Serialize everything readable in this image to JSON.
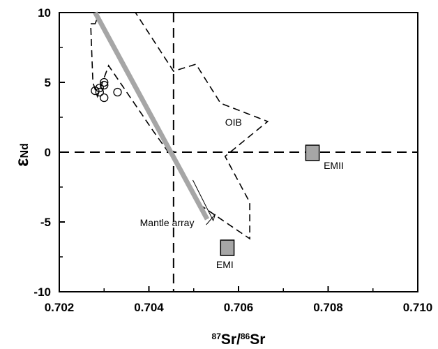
{
  "chart_data": {
    "type": "scatter",
    "xlabel": {
      "sup1": "87",
      "base1": "Sr/",
      "sup2": "86",
      "base2": "Sr"
    },
    "ylabel": {
      "epsilon": "ε",
      "sub": "Nd"
    },
    "xlim": [
      0.702,
      0.71
    ],
    "ylim": [
      -10,
      10
    ],
    "xticks": [
      "0.702",
      "0.704",
      "0.706",
      "0.708",
      "0.710"
    ],
    "yticks": [
      "10",
      "5",
      "0",
      "-5",
      "-10"
    ],
    "grid": false,
    "reference_lines": [
      {
        "orientation": "vertical",
        "x": 0.70455,
        "style": "dashed"
      },
      {
        "orientation": "horizontal",
        "y": 0,
        "style": "dashed"
      }
    ],
    "samples": [
      {
        "x": 0.7028,
        "y": 4.4
      },
      {
        "x": 0.7029,
        "y": 4.6
      },
      {
        "x": 0.703,
        "y": 4.8
      },
      {
        "x": 0.703,
        "y": 5.0
      },
      {
        "x": 0.7029,
        "y": 4.3
      },
      {
        "x": 0.703,
        "y": 3.9
      },
      {
        "x": 0.7033,
        "y": 4.3
      }
    ],
    "mantle_array": {
      "label": "Mantle array",
      "start": [
        0.7028,
        10.0
      ],
      "end": [
        0.7053,
        -4.8
      ],
      "label_position": [
        0.7038,
        -5.3
      ]
    },
    "oib_field": {
      "label": "OIB",
      "label_position": [
        0.7057,
        1.9
      ],
      "polygon": [
        [
          0.7028,
          9.2
        ],
        [
          0.7029,
          10.0
        ],
        [
          0.7037,
          10.0
        ],
        [
          0.70455,
          5.8
        ],
        [
          0.70505,
          6.3
        ],
        [
          0.7056,
          3.5
        ],
        [
          0.70665,
          2.2
        ],
        [
          0.7057,
          -0.3
        ],
        [
          0.70625,
          -3.6
        ],
        [
          0.70625,
          -6.2
        ],
        [
          0.70515,
          -3.8
        ],
        [
          0.7047,
          -1.2
        ],
        [
          0.7041,
          1.5
        ],
        [
          0.7031,
          6.2
        ],
        [
          0.70285,
          4.0
        ],
        [
          0.70275,
          5.0
        ],
        [
          0.7027,
          9.2
        ]
      ]
    },
    "end_members": [
      {
        "label": "EMI",
        "x": [
          0.7056,
          0.7059
        ],
        "y": [
          -7.4,
          -6.3
        ],
        "label_position": [
          0.7055,
          -8.3
        ]
      },
      {
        "label": "EMII",
        "x": [
          0.7075,
          0.7078
        ],
        "y": [
          -0.6,
          0.5
        ],
        "label_position": [
          0.7079,
          -1.2
        ]
      }
    ],
    "colors": {
      "axis": "#000000",
      "field_fill": "#a6a6a6",
      "dashes": "#000000"
    }
  }
}
